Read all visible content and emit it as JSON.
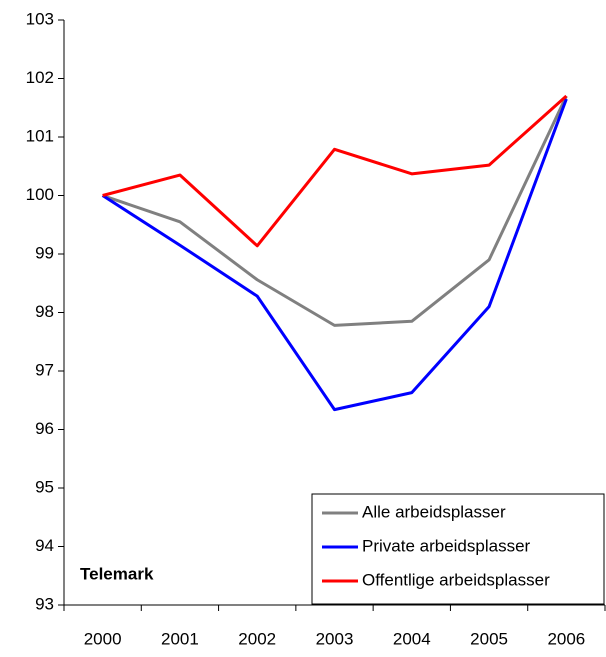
{
  "chart_data": {
    "type": "line",
    "annotation": "Telemark",
    "categories": [
      "2000",
      "2001",
      "2002",
      "2003",
      "2004",
      "2005",
      "2006"
    ],
    "series": [
      {
        "name": "Alle arbeidsplasser",
        "color": "#808080",
        "values": [
          100,
          99.55,
          98.56,
          97.78,
          97.85,
          98.9,
          101.7
        ]
      },
      {
        "name": "Private arbeidsplasser",
        "color": "#0000ff",
        "values": [
          100,
          99.15,
          98.28,
          96.34,
          96.63,
          98.1,
          101.65
        ]
      },
      {
        "name": "Offentlige arbeidsplasser",
        "color": "#ff0000",
        "values": [
          100,
          100.35,
          99.14,
          100.79,
          100.37,
          100.52,
          101.7
        ]
      }
    ],
    "ylim": [
      93,
      103
    ],
    "yticks": [
      93,
      94,
      95,
      96,
      97,
      98,
      99,
      100,
      101,
      102,
      103
    ],
    "grid": false,
    "legend": "lower right"
  }
}
